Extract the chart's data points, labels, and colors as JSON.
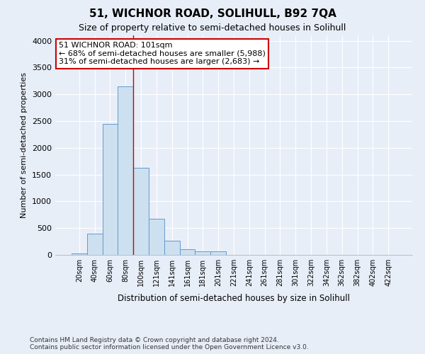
{
  "title": "51, WICHNOR ROAD, SOLIHULL, B92 7QA",
  "subtitle": "Size of property relative to semi-detached houses in Solihull",
  "xlabel": "Distribution of semi-detached houses by size in Solihull",
  "ylabel": "Number of semi-detached properties",
  "footnote": "Contains HM Land Registry data © Crown copyright and database right 2024.\nContains public sector information licensed under the Open Government Licence v3.0.",
  "bar_labels": [
    "20sqm",
    "40sqm",
    "60sqm",
    "80sqm",
    "100sqm",
    "121sqm",
    "141sqm",
    "161sqm",
    "181sqm",
    "201sqm",
    "221sqm",
    "241sqm",
    "261sqm",
    "281sqm",
    "301sqm",
    "322sqm",
    "342sqm",
    "362sqm",
    "382sqm",
    "402sqm",
    "422sqm"
  ],
  "bar_values": [
    25,
    400,
    2450,
    3150,
    1625,
    675,
    270,
    100,
    65,
    60,
    0,
    0,
    0,
    0,
    0,
    0,
    0,
    0,
    0,
    0,
    0
  ],
  "bar_color": "#cce0f0",
  "bar_edge_color": "#6699cc",
  "property_line_x": 3.5,
  "annotation_title": "51 WICHNOR ROAD: 101sqm",
  "annotation_line1": "← 68% of semi-detached houses are smaller (5,988)",
  "annotation_line2": "31% of semi-detached houses are larger (2,683) →",
  "annotation_box_color": "#cc0000",
  "annotation_bg": "white",
  "ylim": [
    0,
    4100
  ],
  "yticks": [
    0,
    500,
    1000,
    1500,
    2000,
    2500,
    3000,
    3500,
    4000
  ],
  "background_color": "#e8eef8",
  "axes_bg": "#e8eef8",
  "grid_color": "#ffffff"
}
